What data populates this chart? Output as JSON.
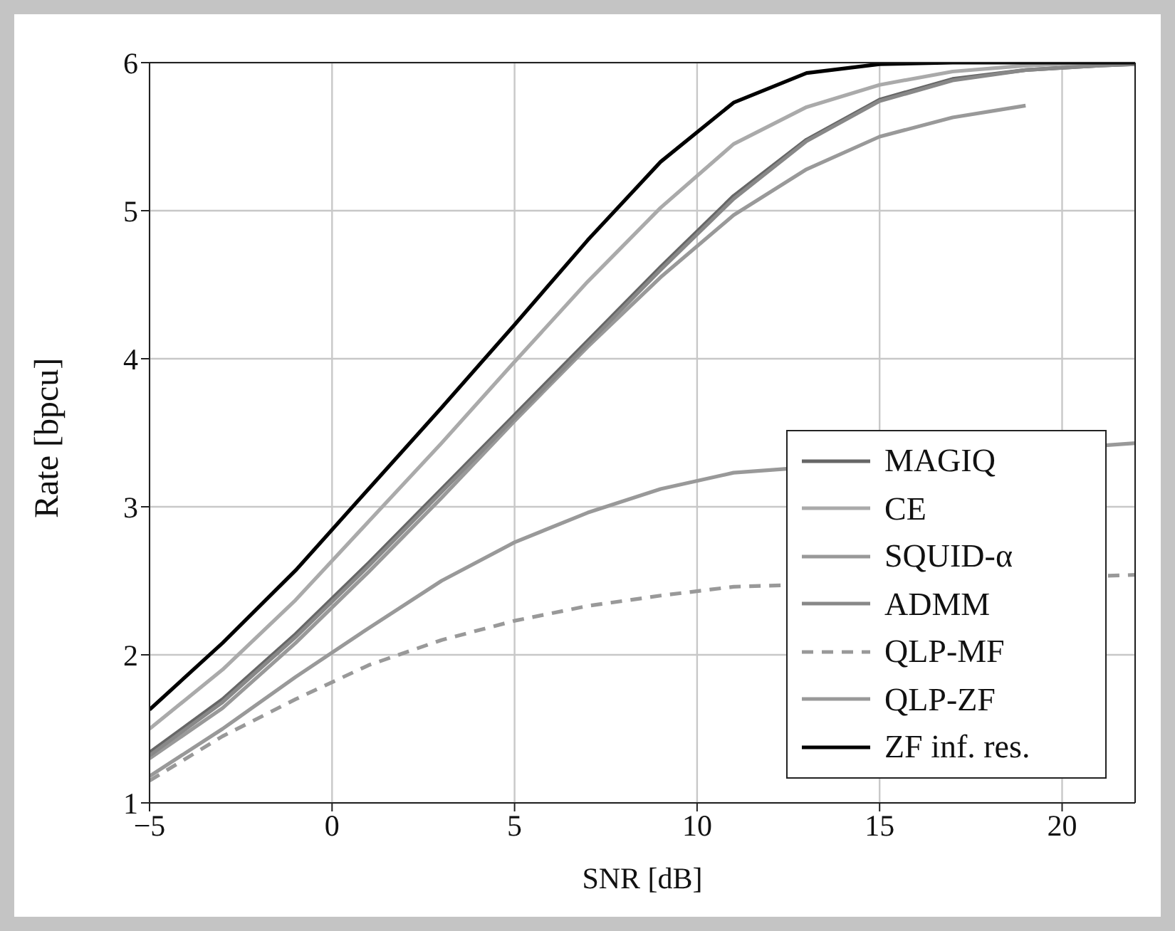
{
  "chart_data": {
    "type": "line",
    "xlabel": "SNR [dB]",
    "ylabel": "Rate [bpcu]",
    "x": [
      -5,
      -3,
      -1,
      1,
      3,
      5,
      7,
      9,
      11,
      13,
      15,
      17,
      19,
      21,
      22
    ],
    "xlim": [
      -5,
      22
    ],
    "xticks": [
      -5,
      0,
      5,
      10,
      15,
      20
    ],
    "ylim": [
      1,
      6
    ],
    "yticks": [
      1,
      2,
      3,
      4,
      5,
      6
    ],
    "grid": true,
    "legend": "bottom right",
    "marker": "none",
    "series": [
      {
        "name": "MAGIQ",
        "color": "#666666",
        "values": [
          1.34,
          1.7,
          2.14,
          2.62,
          3.12,
          3.62,
          4.12,
          4.62,
          5.1,
          5.48,
          5.75,
          5.89,
          5.95,
          5.98,
          5.99
        ]
      },
      {
        "name": "CE",
        "color": "#aaaaaa",
        "values": [
          1.5,
          1.9,
          2.37,
          2.9,
          3.43,
          3.98,
          4.52,
          5.02,
          5.45,
          5.7,
          5.85,
          5.94,
          5.98,
          6,
          6
        ]
      },
      {
        "name": "SQUID-α",
        "color": "#999999",
        "x": [
          -5,
          -3,
          -1,
          1,
          3,
          5,
          7,
          9,
          11,
          13,
          15,
          17,
          19
        ],
        "values": [
          1.3,
          1.64,
          2.08,
          2.56,
          3.06,
          3.58,
          4.08,
          4.55,
          4.97,
          5.28,
          5.5,
          5.63,
          5.71
        ]
      },
      {
        "name": "ADMM",
        "color": "#888888",
        "values": [
          1.32,
          1.68,
          2.12,
          2.6,
          3.1,
          3.6,
          4.1,
          4.6,
          5.08,
          5.47,
          5.74,
          5.88,
          5.95,
          5.98,
          5.99
        ]
      },
      {
        "name": "QLP-MF",
        "color": "#999999",
        "line_style": "dashed",
        "values": [
          1.15,
          1.45,
          1.7,
          1.93,
          2.1,
          2.23,
          2.33,
          2.4,
          2.46,
          null,
          null,
          null,
          null,
          null,
          2.54
        ]
      },
      {
        "name": "QLP-ZF",
        "color": "#999999",
        "values": [
          1.18,
          1.5,
          1.85,
          2.18,
          2.5,
          2.76,
          2.96,
          3.12,
          3.23,
          null,
          null,
          null,
          null,
          null,
          3.43
        ]
      },
      {
        "name": "ZF inf. res.",
        "color": "#000000",
        "values": [
          1.63,
          2.08,
          2.57,
          3.12,
          3.67,
          4.23,
          4.8,
          5.33,
          5.73,
          5.93,
          5.99,
          6,
          6,
          6,
          6
        ]
      }
    ]
  }
}
